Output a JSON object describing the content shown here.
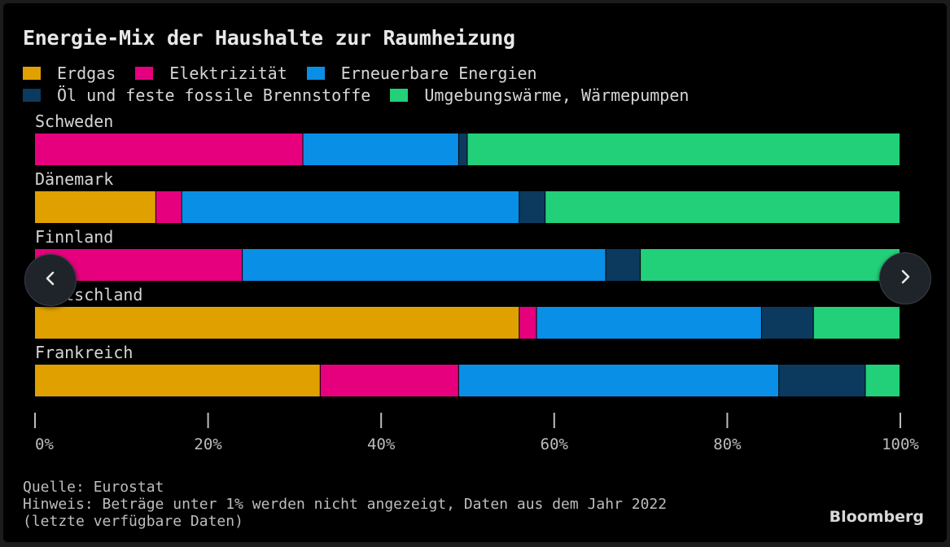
{
  "title": "Energie-Mix der Haushalte zur Raumheizung",
  "legend": {
    "row1": [
      {
        "label": "Erdgas",
        "color": "#e0a100"
      },
      {
        "label": "Elektrizität",
        "color": "#e6007e"
      },
      {
        "label": "Erneuerbare Energien",
        "color": "#0a8fe6"
      }
    ],
    "row2": [
      {
        "label": "Öl und feste fossile Brennstoffe",
        "color": "#0c3a5e"
      },
      {
        "label": "Umgebungswärme, Wärmepumpen",
        "color": "#22d07a"
      }
    ]
  },
  "chart_data": {
    "type": "bar",
    "orientation": "horizontal",
    "stacked": true,
    "title": "Energie-Mix der Haushalte zur Raumheizung",
    "categories": [
      "Schweden",
      "Dänemark",
      "Finnland",
      "Deutschland",
      "Frankreich"
    ],
    "series": [
      {
        "name": "Erdgas",
        "color": "#e0a100",
        "values": [
          0,
          14,
          0,
          56,
          33
        ]
      },
      {
        "name": "Elektrizität",
        "color": "#e6007e",
        "values": [
          31,
          3,
          24,
          2,
          16
        ]
      },
      {
        "name": "Erneuerbare Energien",
        "color": "#0a8fe6",
        "values": [
          18,
          39,
          42,
          26,
          37
        ]
      },
      {
        "name": "Öl und feste fossile Brennstoffe",
        "color": "#0c3a5e",
        "values": [
          1,
          3,
          4,
          6,
          10
        ]
      },
      {
        "name": "Umgebungswärme, Wärmepumpen",
        "color": "#22d07a",
        "values": [
          50,
          41,
          30,
          10,
          4
        ]
      }
    ],
    "xlim": [
      0,
      100
    ],
    "x_ticks": [
      "0%",
      "20%",
      "40%",
      "60%",
      "80%",
      "100%"
    ],
    "x_tick_values": [
      0,
      20,
      40,
      60,
      80,
      100
    ],
    "xlabel": "",
    "ylabel": "",
    "legend_position": "top-left",
    "grid": false
  },
  "footer": {
    "source": "Quelle: Eurostat",
    "note": "Hinweis: Beträge unter 1% werden nicht angezeigt, Daten aus dem Jahr 2022 (letzte verfügbare Daten)"
  },
  "brand": "Bloomberg",
  "nav": {
    "prev_icon": "chevron-left-icon",
    "next_icon": "chevron-right-icon"
  }
}
